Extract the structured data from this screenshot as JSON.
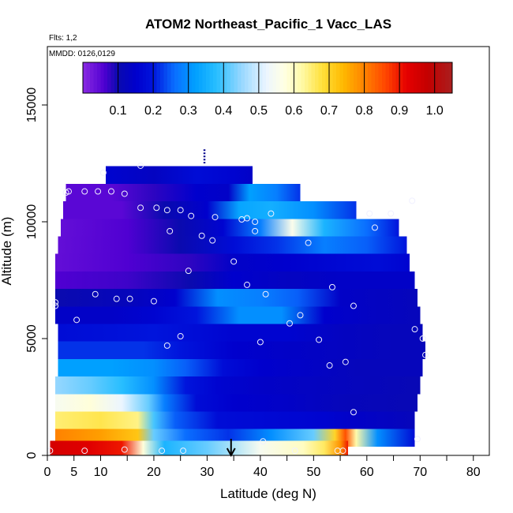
{
  "chart_data": {
    "type": "heatmap",
    "title": "ATOM2 Northeast_Pacific_1 Vacc_LAS",
    "annotations": [
      "Flts: 1,2",
      "MMDD: 0126,0129"
    ],
    "xlabel": "Latitude (deg N)",
    "ylabel": "Altitude (m)",
    "xlim": [
      0,
      83
    ],
    "ylim": [
      0,
      17500
    ],
    "x_ticks": [
      0,
      5,
      10,
      20,
      30,
      40,
      50,
      60,
      70,
      80
    ],
    "x_minor_ticks": [
      15,
      25,
      35,
      45,
      55,
      65,
      75
    ],
    "y_ticks": [
      0,
      5000,
      10000,
      15000
    ],
    "colorbar": {
      "range": [
        0,
        1.05
      ],
      "ticks": [
        0.1,
        0.2,
        0.3,
        0.4,
        0.5,
        0.6,
        0.7,
        0.8,
        0.9,
        1.0
      ],
      "tick_labels": [
        "0.1",
        "0.2",
        "0.3",
        "0.4",
        "0.5",
        "0.6",
        "0.7",
        "0.8",
        "0.9",
        "1.0"
      ]
    },
    "arrow_marker_latitude": 34.5,
    "altitude_bands": [
      {
        "alt": 12000,
        "x_min": 11,
        "x_max": 38.5,
        "values": [
          [
            11,
            0.16
          ],
          [
            20,
            0.13
          ],
          [
            28,
            0.18
          ],
          [
            35,
            0.16
          ],
          [
            38.5,
            0.14
          ]
        ]
      },
      {
        "alt": 11250,
        "x_min": 3.5,
        "x_max": 47.5,
        "values": [
          [
            3.5,
            0.05
          ],
          [
            12,
            0.05
          ],
          [
            20,
            0.08
          ],
          [
            28,
            0.15
          ],
          [
            34,
            0.14
          ],
          [
            38,
            0.32
          ],
          [
            43,
            0.28
          ],
          [
            47.5,
            0.22
          ]
        ]
      },
      {
        "alt": 10500,
        "x_min": 3,
        "x_max": 58,
        "values": [
          [
            3,
            0.05
          ],
          [
            14,
            0.05
          ],
          [
            22,
            0.1
          ],
          [
            30,
            0.15
          ],
          [
            36,
            0.33
          ],
          [
            42,
            0.35
          ],
          [
            50,
            0.3
          ],
          [
            58,
            0.22
          ]
        ]
      },
      {
        "alt": 9750,
        "x_min": 2.5,
        "x_max": 66,
        "values": [
          [
            2.5,
            0.04
          ],
          [
            15,
            0.06
          ],
          [
            25,
            0.1
          ],
          [
            33,
            0.16
          ],
          [
            40,
            0.28
          ],
          [
            46,
            0.56
          ],
          [
            52,
            0.36
          ],
          [
            60,
            0.26
          ],
          [
            66,
            0.2
          ]
        ]
      },
      {
        "alt": 9000,
        "x_min": 2,
        "x_max": 67.5,
        "values": [
          [
            2,
            0.04
          ],
          [
            15,
            0.06
          ],
          [
            25,
            0.1
          ],
          [
            35,
            0.18
          ],
          [
            43,
            0.22
          ],
          [
            52,
            0.28
          ],
          [
            60,
            0.25
          ],
          [
            67.5,
            0.2
          ]
        ]
      },
      {
        "alt": 8250,
        "x_min": 1.5,
        "x_max": 68,
        "values": [
          [
            1.5,
            0.04
          ],
          [
            15,
            0.06
          ],
          [
            27,
            0.08
          ],
          [
            35,
            0.14
          ],
          [
            45,
            0.15
          ],
          [
            55,
            0.17
          ],
          [
            62,
            0.18
          ],
          [
            68,
            0.16
          ]
        ]
      },
      {
        "alt": 7500,
        "x_min": 1.5,
        "x_max": 69,
        "values": [
          [
            1.5,
            0.06
          ],
          [
            15,
            0.07
          ],
          [
            27,
            0.1
          ],
          [
            35,
            0.15
          ],
          [
            45,
            0.13
          ],
          [
            55,
            0.14
          ],
          [
            62,
            0.14
          ],
          [
            69,
            0.14
          ]
        ]
      },
      {
        "alt": 6750,
        "x_min": 1.5,
        "x_max": 69.5,
        "values": [
          [
            1.5,
            0.1
          ],
          [
            15,
            0.12
          ],
          [
            24,
            0.15
          ],
          [
            32,
            0.3
          ],
          [
            40,
            0.28
          ],
          [
            47,
            0.25
          ],
          [
            55,
            0.14
          ],
          [
            62,
            0.13
          ],
          [
            69.5,
            0.12
          ]
        ]
      },
      {
        "alt": 6000,
        "x_min": 1.5,
        "x_max": 70,
        "values": [
          [
            1.5,
            0.14
          ],
          [
            12,
            0.14
          ],
          [
            20,
            0.16
          ],
          [
            28,
            0.2
          ],
          [
            36,
            0.3
          ],
          [
            44,
            0.3
          ],
          [
            52,
            0.15
          ],
          [
            62,
            0.13
          ],
          [
            70,
            0.12
          ]
        ]
      },
      {
        "alt": 5250,
        "x_min": 2,
        "x_max": 70.5,
        "values": [
          [
            2,
            0.18
          ],
          [
            12,
            0.19
          ],
          [
            20,
            0.2
          ],
          [
            28,
            0.18
          ],
          [
            35,
            0.16
          ],
          [
            45,
            0.16
          ],
          [
            55,
            0.13
          ],
          [
            65,
            0.12
          ],
          [
            70.5,
            0.12
          ]
        ]
      },
      {
        "alt": 4500,
        "x_min": 2,
        "x_max": 71,
        "values": [
          [
            2,
            0.22
          ],
          [
            10,
            0.22
          ],
          [
            18,
            0.22
          ],
          [
            25,
            0.2
          ],
          [
            35,
            0.15
          ],
          [
            45,
            0.14
          ],
          [
            55,
            0.13
          ],
          [
            65,
            0.12
          ],
          [
            71,
            0.12
          ]
        ]
      },
      {
        "alt": 3750,
        "x_min": 2,
        "x_max": 70.5,
        "values": [
          [
            2,
            0.32
          ],
          [
            12,
            0.32
          ],
          [
            20,
            0.3
          ],
          [
            26,
            0.25
          ],
          [
            33,
            0.18
          ],
          [
            40,
            0.15
          ],
          [
            48,
            0.14
          ],
          [
            58,
            0.12
          ],
          [
            70.5,
            0.12
          ]
        ]
      },
      {
        "alt": 3000,
        "x_min": 1.5,
        "x_max": 70,
        "values": [
          [
            1.5,
            0.45
          ],
          [
            8,
            0.42
          ],
          [
            14,
            0.38
          ],
          [
            20,
            0.3
          ],
          [
            26,
            0.2
          ],
          [
            32,
            0.16
          ],
          [
            40,
            0.14
          ],
          [
            50,
            0.13
          ],
          [
            60,
            0.12
          ],
          [
            70,
            0.11
          ]
        ]
      },
      {
        "alt": 2250,
        "x_min": 1.5,
        "x_max": 69.5,
        "values": [
          [
            1.5,
            0.55
          ],
          [
            8,
            0.58
          ],
          [
            14,
            0.52
          ],
          [
            19,
            0.42
          ],
          [
            22,
            0.28
          ],
          [
            28,
            0.18
          ],
          [
            35,
            0.15
          ],
          [
            45,
            0.14
          ],
          [
            55,
            0.12
          ],
          [
            69.5,
            0.11
          ]
        ]
      },
      {
        "alt": 1500,
        "x_min": 1.5,
        "x_max": 69,
        "values": [
          [
            1.5,
            0.65
          ],
          [
            10,
            0.67
          ],
          [
            17,
            0.64
          ],
          [
            20,
            0.4
          ],
          [
            24,
            0.25
          ],
          [
            32,
            0.18
          ],
          [
            42,
            0.17
          ],
          [
            52,
            0.16
          ],
          [
            58,
            0.14
          ],
          [
            69,
            0.12
          ]
        ]
      },
      {
        "alt": 750,
        "x_min": 1.5,
        "x_max": 69,
        "values": [
          [
            1.5,
            0.8
          ],
          [
            10,
            0.77
          ],
          [
            17,
            0.72
          ],
          [
            20,
            0.42
          ],
          [
            26,
            0.26
          ],
          [
            34,
            0.22
          ],
          [
            42,
            0.3
          ],
          [
            50,
            0.42
          ],
          [
            54,
            0.7
          ],
          [
            56,
            0.85
          ],
          [
            58,
            0.62
          ],
          [
            62,
            0.3
          ],
          [
            69,
            0.18
          ]
        ]
      },
      {
        "alt": 250,
        "x_min": 0.5,
        "x_max": 56.5,
        "values": [
          [
            0.5,
            0.95
          ],
          [
            8,
            0.93
          ],
          [
            14,
            0.9
          ],
          [
            18,
            0.58
          ],
          [
            22,
            0.36
          ],
          [
            30,
            0.42
          ],
          [
            40,
            0.55
          ],
          [
            48,
            0.6
          ],
          [
            52,
            0.66
          ],
          [
            55,
            0.78
          ],
          [
            56.5,
            0.9
          ]
        ]
      }
    ],
    "observation_points": [
      [
        10.5,
        12100
      ],
      [
        17.5,
        12400
      ],
      [
        4,
        11300
      ],
      [
        3.5,
        11250
      ],
      [
        7,
        11300
      ],
      [
        9.5,
        11300
      ],
      [
        12,
        11300
      ],
      [
        14.5,
        11200
      ],
      [
        17.5,
        10600
      ],
      [
        20.5,
        10600
      ],
      [
        22.5,
        10500
      ],
      [
        25,
        10500
      ],
      [
        27,
        10250
      ],
      [
        31.5,
        10200
      ],
      [
        36.5,
        10100
      ],
      [
        37.5,
        10150
      ],
      [
        39,
        10000
      ],
      [
        42,
        10350
      ],
      [
        39,
        9600
      ],
      [
        23,
        9600
      ],
      [
        29,
        9400
      ],
      [
        31,
        9200
      ],
      [
        49,
        9100
      ],
      [
        60.5,
        10350
      ],
      [
        64.5,
        10350
      ],
      [
        61.5,
        9750
      ],
      [
        68.5,
        10900
      ],
      [
        35,
        8300
      ],
      [
        26.5,
        7900
      ],
      [
        37.5,
        7300
      ],
      [
        53.5,
        7200
      ],
      [
        1.5,
        6550
      ],
      [
        1.5,
        6400
      ],
      [
        9,
        6900
      ],
      [
        13,
        6700
      ],
      [
        15.5,
        6700
      ],
      [
        20,
        6600
      ],
      [
        41,
        6900
      ],
      [
        57.5,
        6400
      ],
      [
        5.5,
        5800
      ],
      [
        47.5,
        6000
      ],
      [
        45.5,
        5650
      ],
      [
        25,
        5100
      ],
      [
        22.5,
        4700
      ],
      [
        40,
        4850
      ],
      [
        51,
        4950
      ],
      [
        69,
        5400
      ],
      [
        70.5,
        5000
      ],
      [
        71,
        4300
      ],
      [
        56,
        4000
      ],
      [
        53,
        3850
      ],
      [
        57.5,
        1850
      ],
      [
        40.5,
        600
      ],
      [
        69.5,
        700
      ],
      [
        0.5,
        200
      ],
      [
        7,
        200
      ],
      [
        14.5,
        250
      ],
      [
        21.5,
        200
      ],
      [
        25.5,
        200
      ],
      [
        46.5,
        200
      ],
      [
        54.5,
        200
      ],
      [
        55.5,
        200
      ]
    ]
  }
}
